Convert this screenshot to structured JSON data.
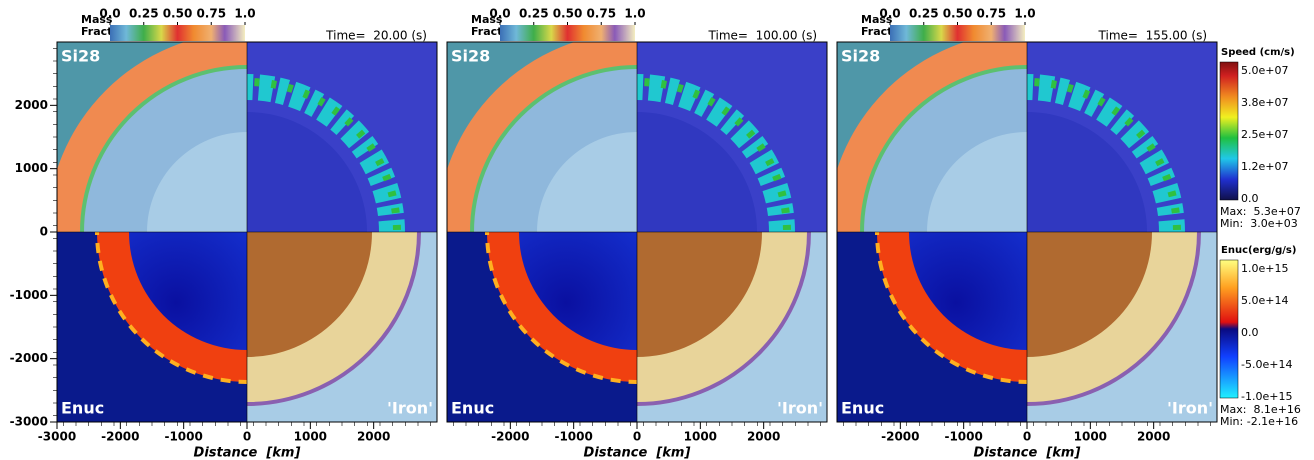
{
  "panels": [
    {
      "time": "Time=  20.00 (s)",
      "mass_label": [
        "Mass",
        "Fraction"
      ],
      "mass_ticks": [
        "0.0",
        "0.25",
        "0.50",
        "0.75",
        "1.0"
      ],
      "quadrants": [
        "Si28",
        "Enuc",
        "'Iron'"
      ],
      "x_label": "Distance  [km]",
      "x_ticks": [
        -3000,
        -2000,
        -1000,
        0,
        1000,
        2000
      ]
    },
    {
      "time": "Time=  100.00 (s)",
      "mass_label": [
        "Mass",
        "Fraction"
      ],
      "mass_ticks": [
        "0.0",
        "0.25",
        "0.50",
        "0.75",
        "1.0"
      ],
      "quadrants": [
        "Si28",
        "Enuc",
        "'Iron'"
      ],
      "x_label": "Distance  [km]",
      "x_ticks": [
        -2000,
        -1000,
        0,
        1000,
        2000
      ]
    },
    {
      "time": "Time=  155.00 (s)",
      "mass_label": [
        "Mass",
        "Fraction"
      ],
      "mass_ticks": [
        "0.0",
        "0.25",
        "0.50",
        "0.75",
        "1.0"
      ],
      "quadrants": [
        "Si28",
        "Enuc",
        "'Iron'"
      ],
      "x_label": "Distance  [km]",
      "x_ticks": [
        -2000,
        -1000,
        0,
        1000,
        2000
      ]
    }
  ],
  "y_ticks": [
    2000,
    1000,
    0,
    -1000,
    -2000,
    -3000
  ],
  "speed_colorbar": {
    "title": "Speed (cm/s)",
    "ticks": [
      "5.0e+07",
      "3.8e+07",
      "2.5e+07",
      "1.2e+07",
      "0.0"
    ],
    "max": "Max:  5.3e+07",
    "min": "Min:  3.0e+03"
  },
  "enuc_colorbar": {
    "title": "Enuc(erg/g/s)",
    "ticks": [
      "1.0e+15",
      "5.0e+14",
      "0.0",
      "-5.0e+14",
      "-1.0e+15"
    ],
    "max": "Max:  8.1e+16",
    "min": "Min: -2.1e+16"
  }
}
